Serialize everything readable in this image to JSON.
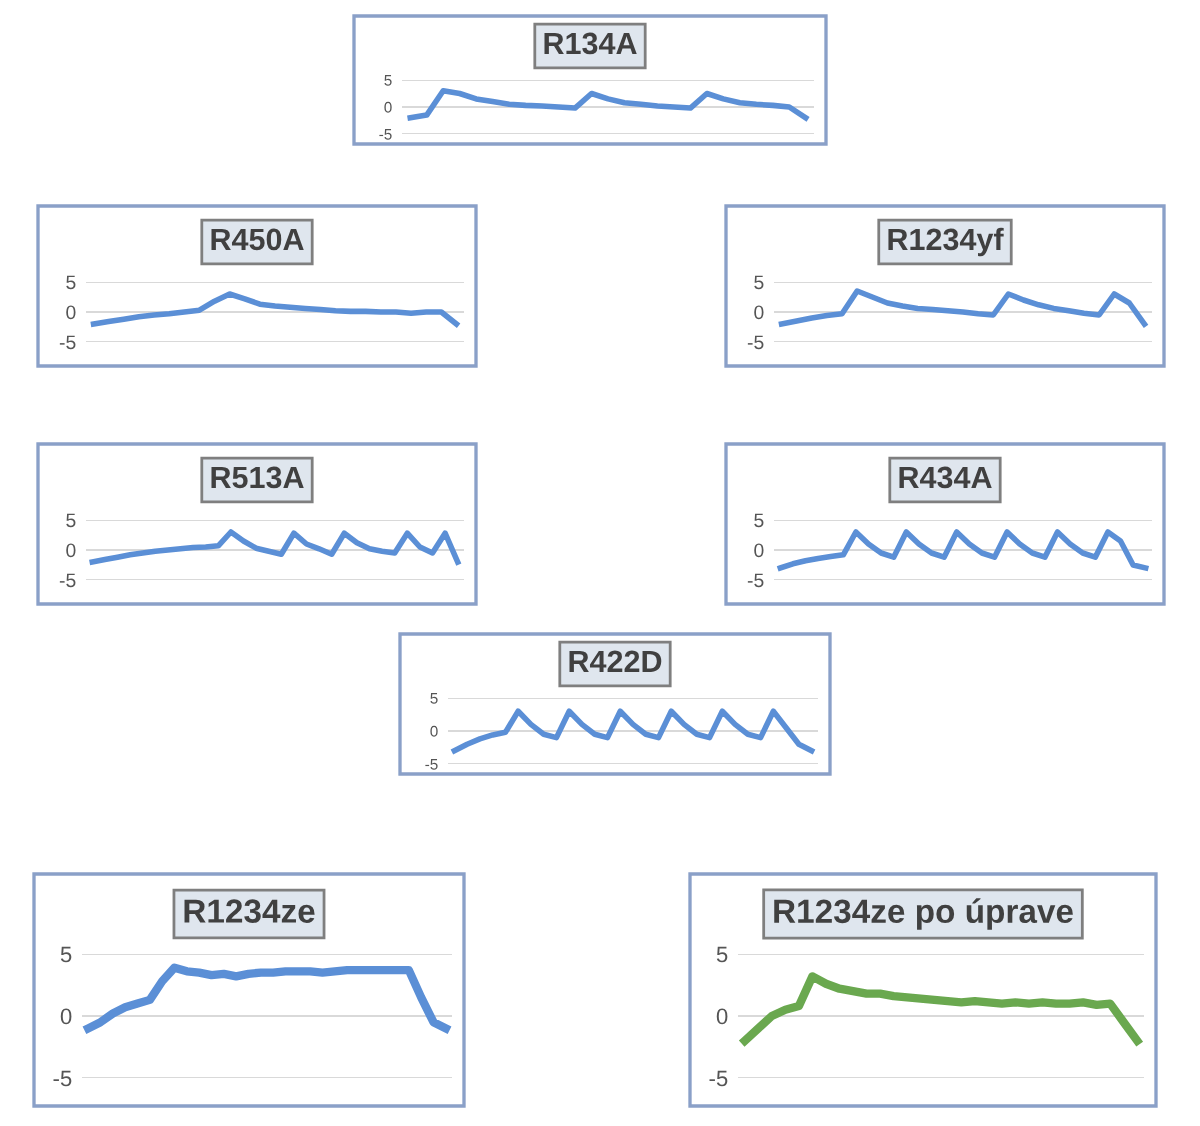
{
  "chart_data": [
    {
      "type": "line",
      "title": "R134A",
      "categories": [
        null,
        null,
        null,
        null,
        null,
        null,
        null,
        null,
        null,
        null,
        null,
        null,
        null,
        null,
        null,
        null,
        null,
        null,
        null,
        null,
        null,
        null,
        null,
        null,
        null
      ],
      "series": [
        {
          "color": "#5b8fd6",
          "values": [
            -2,
            -1.5,
            3,
            2.5,
            1.5,
            1,
            0.5,
            0.3,
            0.2,
            0,
            -0.2,
            2.5,
            1.5,
            0.8,
            0.5,
            0.2,
            0,
            -0.2,
            2.5,
            1.5,
            0.8,
            0.5,
            0.3,
            0,
            -2
          ]
        }
      ],
      "ylim": [
        -5,
        5
      ],
      "yticks": [
        -5,
        0,
        5
      ],
      "grid": "y",
      "tick_labels": "y",
      "legend": false
    },
    {
      "type": "line",
      "title": "R450A",
      "categories": [
        null,
        null,
        null,
        null,
        null,
        null,
        null,
        null,
        null,
        null,
        null,
        null,
        null,
        null,
        null,
        null,
        null,
        null,
        null,
        null,
        null,
        null,
        null,
        null,
        null
      ],
      "series": [
        {
          "color": "#5b8fd6",
          "values": [
            -2,
            -1.6,
            -1.2,
            -0.8,
            -0.5,
            -0.3,
            0,
            0.3,
            1.8,
            3,
            2.2,
            1.3,
            1,
            0.8,
            0.6,
            0.4,
            0.2,
            0.1,
            0.1,
            0,
            0,
            -0.2,
            0,
            0,
            -2
          ]
        }
      ],
      "ylim": [
        -5,
        5
      ],
      "yticks": [
        -5,
        0,
        5
      ],
      "grid": "y",
      "tick_labels": "y",
      "legend": false
    },
    {
      "type": "line",
      "title": "R1234yf",
      "categories": [
        null,
        null,
        null,
        null,
        null,
        null,
        null,
        null,
        null,
        null,
        null,
        null,
        null,
        null,
        null,
        null,
        null,
        null,
        null,
        null,
        null,
        null,
        null,
        null,
        null
      ],
      "series": [
        {
          "color": "#5b8fd6",
          "values": [
            -2,
            -1.5,
            -1,
            -0.6,
            -0.3,
            3.5,
            2.5,
            1.5,
            1,
            0.6,
            0.4,
            0.2,
            0,
            -0.3,
            -0.5,
            3,
            2,
            1.2,
            0.6,
            0.2,
            -0.2,
            -0.5,
            3,
            1.5,
            -2
          ]
        }
      ],
      "ylim": [
        -5,
        5
      ],
      "yticks": [
        -5,
        0,
        5
      ],
      "grid": "y",
      "tick_labels": "y",
      "legend": false
    },
    {
      "type": "line",
      "title": "R513A",
      "categories": [
        null,
        null,
        null,
        null,
        null,
        null,
        null,
        null,
        null,
        null,
        null,
        null,
        null,
        null,
        null,
        null,
        null,
        null,
        null,
        null,
        null,
        null,
        null,
        null,
        null,
        null,
        null,
        null,
        null,
        null
      ],
      "series": [
        {
          "color": "#5b8fd6",
          "values": [
            -2,
            -1.6,
            -1.2,
            -0.8,
            -0.5,
            -0.2,
            0,
            0.2,
            0.4,
            0.5,
            0.7,
            3,
            1.5,
            0.3,
            -0.2,
            -0.7,
            2.8,
            1,
            0.2,
            -0.7,
            2.8,
            1.2,
            0.2,
            -0.2,
            -0.5,
            2.8,
            0.5,
            -0.5,
            2.8,
            -2
          ]
        }
      ],
      "ylim": [
        -5,
        5
      ],
      "yticks": [
        -5,
        0,
        5
      ],
      "grid": "y",
      "tick_labels": "y",
      "legend": false
    },
    {
      "type": "line",
      "title": "R434A",
      "categories": [
        null,
        null,
        null,
        null,
        null,
        null,
        null,
        null,
        null,
        null,
        null,
        null,
        null,
        null,
        null,
        null,
        null,
        null,
        null,
        null,
        null,
        null,
        null,
        null,
        null,
        null,
        null,
        null,
        null,
        null
      ],
      "series": [
        {
          "color": "#5b8fd6",
          "values": [
            -3,
            -2.3,
            -1.8,
            -1.4,
            -1.1,
            -0.8,
            3,
            1,
            -0.5,
            -1.2,
            3,
            1,
            -0.5,
            -1.2,
            3,
            1,
            -0.5,
            -1.2,
            3,
            1,
            -0.5,
            -1.2,
            3,
            1,
            -0.5,
            -1.2,
            3,
            1.5,
            -2.5,
            -3
          ]
        }
      ],
      "ylim": [
        -5,
        5
      ],
      "yticks": [
        -5,
        0,
        5
      ],
      "grid": "y",
      "tick_labels": "y",
      "legend": false
    },
    {
      "type": "line",
      "title": "R422D",
      "categories": [
        null,
        null,
        null,
        null,
        null,
        null,
        null,
        null,
        null,
        null,
        null,
        null,
        null,
        null,
        null,
        null,
        null,
        null,
        null,
        null,
        null,
        null,
        null,
        null,
        null,
        null,
        null,
        null,
        null
      ],
      "series": [
        {
          "color": "#5b8fd6",
          "values": [
            -3,
            -2,
            -1.2,
            -0.6,
            -0.2,
            3,
            1,
            -0.5,
            -1,
            3,
            1,
            -0.5,
            -1,
            3,
            1,
            -0.5,
            -1,
            3,
            1,
            -0.5,
            -1,
            3,
            1,
            -0.5,
            -1,
            3,
            0.5,
            -2,
            -3
          ]
        }
      ],
      "ylim": [
        -5,
        5
      ],
      "yticks": [
        -5,
        0,
        5
      ],
      "grid": "y",
      "tick_labels": "y",
      "legend": false
    },
    {
      "type": "line",
      "title": "R1234ze",
      "categories": [
        null,
        null,
        null,
        null,
        null,
        null,
        null,
        null,
        null,
        null,
        null,
        null,
        null,
        null,
        null,
        null,
        null,
        null,
        null,
        null,
        null,
        null,
        null,
        null,
        null,
        null,
        null,
        null,
        null,
        null
      ],
      "series": [
        {
          "color": "#5b8fd6",
          "values": [
            -1,
            -0.5,
            0.2,
            0.7,
            1,
            1.3,
            2.8,
            3.9,
            3.6,
            3.5,
            3.3,
            3.4,
            3.2,
            3.4,
            3.5,
            3.5,
            3.6,
            3.6,
            3.6,
            3.5,
            3.6,
            3.7,
            3.7,
            3.7,
            3.7,
            3.7,
            3.7,
            1.5,
            -0.5,
            -1
          ]
        }
      ],
      "ylim": [
        -5,
        5
      ],
      "yticks": [
        -5,
        0,
        5
      ],
      "grid": "y",
      "tick_labels": "y",
      "legend": false
    },
    {
      "type": "line",
      "title": "R1234ze po úprave",
      "categories": [
        null,
        null,
        null,
        null,
        null,
        null,
        null,
        null,
        null,
        null,
        null,
        null,
        null,
        null,
        null,
        null,
        null,
        null,
        null,
        null,
        null,
        null,
        null,
        null,
        null,
        null,
        null,
        null,
        null,
        null
      ],
      "series": [
        {
          "color": "#6aa84f",
          "values": [
            -2,
            -1,
            0,
            0.5,
            0.8,
            3.2,
            2.6,
            2.2,
            2,
            1.8,
            1.8,
            1.6,
            1.5,
            1.4,
            1.3,
            1.2,
            1.1,
            1.2,
            1.1,
            1,
            1.1,
            1,
            1.1,
            1,
            1,
            1.1,
            0.9,
            1,
            -0.5,
            -2
          ]
        }
      ],
      "ylim": [
        -5,
        5
      ],
      "yticks": [
        -5,
        0,
        5
      ],
      "grid": "y",
      "tick_labels": "y",
      "legend": false
    }
  ]
}
